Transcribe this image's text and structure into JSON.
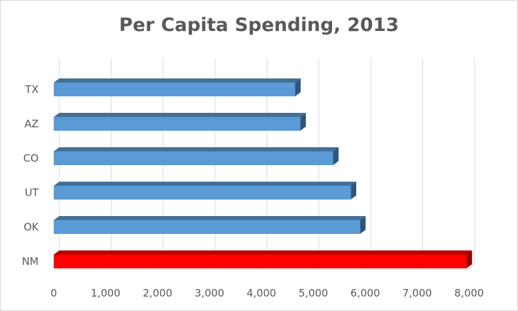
{
  "chart_data": {
    "type": "bar",
    "orientation": "horizontal",
    "title": "Per Capita Spending, 2013",
    "categories": [
      "NM",
      "OK",
      "UT",
      "CO",
      "AZ",
      "TX"
    ],
    "values": [
      7950,
      5900,
      5720,
      5380,
      4750,
      4650
    ],
    "xlim": [
      0,
      8000
    ],
    "xticks": [
      "0",
      "1,000",
      "2,000",
      "3,000",
      "4,000",
      "5,000",
      "6,000",
      "7,000",
      "8,000"
    ],
    "grid": "vertical",
    "colors": {
      "default_bar": "#5b9bd5",
      "highlight_bar": "#ff0000",
      "highlight_category": "NM"
    }
  }
}
